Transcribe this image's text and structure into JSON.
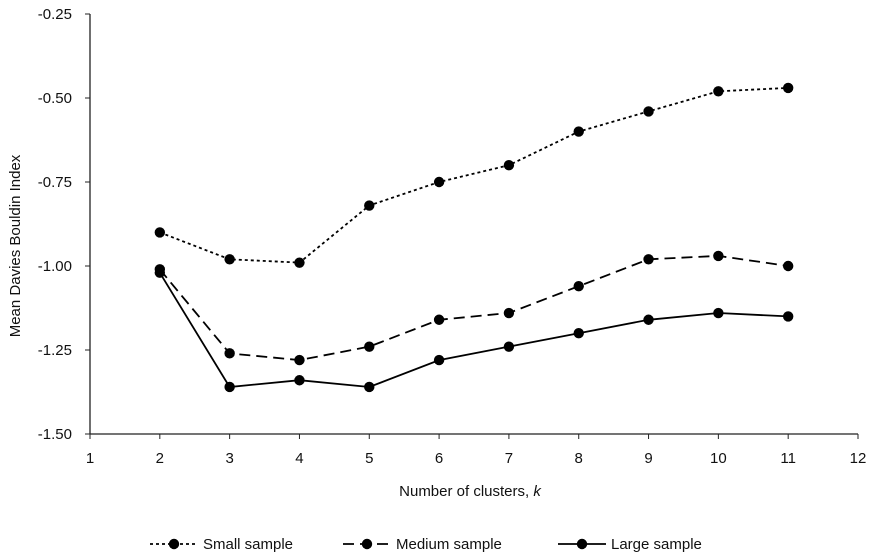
{
  "chart_data": {
    "type": "line",
    "title": "",
    "xlabel": "Number of clusters, ",
    "xlabel_italic": "k",
    "ylabel": "Mean Davies Bouldin Index",
    "xlim": [
      1,
      12
    ],
    "ylim": [
      -1.5,
      -0.25
    ],
    "xticks": [
      "1",
      "2",
      "3",
      "4",
      "5",
      "6",
      "7",
      "8",
      "9",
      "10",
      "11",
      "12"
    ],
    "yticks": [
      "-0.25",
      "-0.50",
      "-0.75",
      "-1.00",
      "-1.25",
      "-1.50"
    ],
    "grid": false,
    "legend_position": "bottom",
    "x": [
      2,
      3,
      4,
      5,
      6,
      7,
      8,
      9,
      10,
      11
    ],
    "series": [
      {
        "name": "Small sample",
        "line_style": "dotted",
        "color": "#000000",
        "values": [
          -0.9,
          -0.98,
          -0.99,
          -0.82,
          -0.75,
          -0.7,
          -0.6,
          -0.54,
          -0.48,
          -0.47
        ]
      },
      {
        "name": "Medium sample",
        "line_style": "dashed",
        "color": "#000000",
        "values": [
          -1.01,
          -1.26,
          -1.28,
          -1.24,
          -1.16,
          -1.14,
          -1.06,
          -0.98,
          -0.97,
          -1.0
        ]
      },
      {
        "name": "Large sample",
        "line_style": "solid",
        "color": "#000000",
        "values": [
          -1.02,
          -1.36,
          -1.34,
          -1.36,
          -1.28,
          -1.24,
          -1.2,
          -1.16,
          -1.14,
          -1.15
        ]
      }
    ]
  }
}
